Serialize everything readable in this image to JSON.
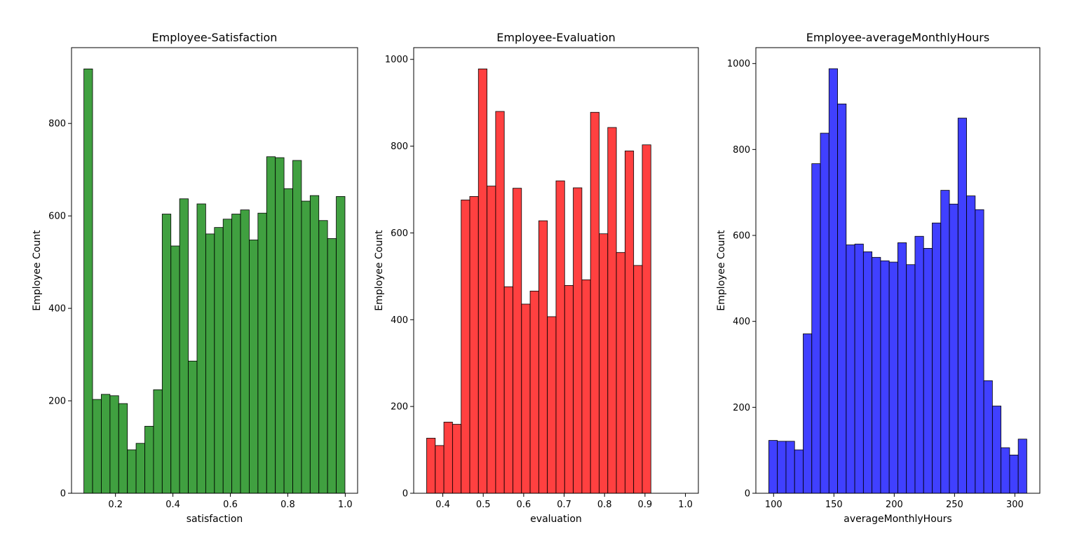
{
  "chart_data": [
    {
      "type": "bar",
      "title": "Employee-Satisfaction",
      "xlabel": "satisfaction",
      "ylabel": "Employee Count",
      "color": "#008000",
      "bin_start": 0.09,
      "bin_width": 0.0303,
      "values": [
        918,
        203,
        214,
        211,
        194,
        94,
        108,
        145,
        224,
        604,
        535,
        637,
        286,
        626,
        561,
        575,
        593,
        604,
        613,
        548,
        606,
        728,
        726,
        659,
        720,
        632,
        644,
        590,
        551,
        642
      ],
      "xlim": [
        0.047,
        1.043
      ],
      "ylim": [
        0,
        964
      ],
      "xticks": [
        {
          "value": 0.2,
          "label": "0.2"
        },
        {
          "value": 0.4,
          "label": "0.4"
        },
        {
          "value": 0.6,
          "label": "0.6"
        },
        {
          "value": 0.8,
          "label": "0.8"
        },
        {
          "value": 1.0,
          "label": "1.0"
        }
      ],
      "yticks": [
        {
          "value": 0,
          "label": "0"
        },
        {
          "value": 200,
          "label": "200"
        },
        {
          "value": 400,
          "label": "400"
        },
        {
          "value": 600,
          "label": "600"
        },
        {
          "value": 800,
          "label": "800"
        }
      ],
      "grid": false
    },
    {
      "type": "bar",
      "title": "Employee-Evaluation",
      "xlabel": "evaluation",
      "ylabel": "Employee Count",
      "color": "#ff0000",
      "bin_start": 0.36,
      "bin_width": 0.02133,
      "values": [
        127,
        110,
        164,
        159,
        676,
        684,
        978,
        708,
        880,
        476,
        703,
        436,
        466,
        628,
        407,
        720,
        479,
        704,
        492,
        878,
        598,
        843,
        555,
        789,
        525,
        803
      ],
      "xlim": [
        0.328,
        1.032
      ],
      "ylim": [
        0,
        1027
      ],
      "xticks": [
        {
          "value": 0.4,
          "label": "0.4"
        },
        {
          "value": 0.5,
          "label": "0.5"
        },
        {
          "value": 0.6,
          "label": "0.6"
        },
        {
          "value": 0.7,
          "label": "0.7"
        },
        {
          "value": 0.8,
          "label": "0.8"
        },
        {
          "value": 0.9,
          "label": "0.9"
        },
        {
          "value": 1.0,
          "label": "1.0"
        }
      ],
      "yticks": [
        {
          "value": 0,
          "label": "0"
        },
        {
          "value": 200,
          "label": "200"
        },
        {
          "value": 400,
          "label": "400"
        },
        {
          "value": 600,
          "label": "600"
        },
        {
          "value": 800,
          "label": "800"
        },
        {
          "value": 1000,
          "label": "1000"
        }
      ],
      "grid": false
    },
    {
      "type": "bar",
      "title": "Employee-averageMonthlyHours",
      "xlabel": "averageMonthlyHours",
      "ylabel": "Employee Count",
      "color": "#0000ff",
      "bin_start": 96,
      "bin_width": 7.13,
      "values": [
        123,
        121,
        121,
        101,
        371,
        767,
        838,
        988,
        906,
        578,
        580,
        562,
        549,
        541,
        538,
        583,
        532,
        598,
        570,
        629,
        705,
        673,
        873,
        692,
        660,
        262,
        203,
        106,
        89,
        126
      ],
      "xlim": [
        85.3,
        320.7
      ],
      "ylim": [
        0,
        1037
      ],
      "xticks": [
        {
          "value": 100,
          "label": "100"
        },
        {
          "value": 150,
          "label": "150"
        },
        {
          "value": 200,
          "label": "200"
        },
        {
          "value": 250,
          "label": "250"
        },
        {
          "value": 300,
          "label": "300"
        }
      ],
      "yticks": [
        {
          "value": 0,
          "label": "0"
        },
        {
          "value": 200,
          "label": "200"
        },
        {
          "value": 400,
          "label": "400"
        },
        {
          "value": 600,
          "label": "600"
        },
        {
          "value": 800,
          "label": "800"
        },
        {
          "value": 1000,
          "label": "1000"
        }
      ],
      "grid": false
    }
  ]
}
